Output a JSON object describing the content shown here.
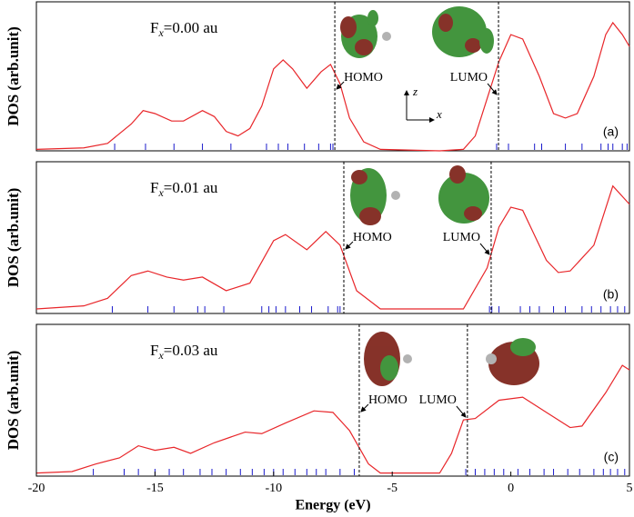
{
  "chart_data": [
    {
      "type": "line",
      "ylabel": "DOS (arb.unit)",
      "panel_label": "(a)",
      "field": {
        "symbol": "F",
        "subscript": "x",
        "text": "=0.00 au"
      },
      "axes_icon": [
        "z",
        "x"
      ],
      "xlim": [
        -20,
        5
      ],
      "ylim": [
        0,
        1
      ],
      "x": [
        -20,
        -18,
        -17,
        -16,
        -15.5,
        -15,
        -14.3,
        -13.8,
        -13,
        -12.5,
        -12,
        -11.5,
        -11,
        -10.5,
        -10,
        -9.6,
        -9.2,
        -8.6,
        -8,
        -7.6,
        -7.2,
        -6.8,
        -6.2,
        -5.5,
        -3,
        -2,
        -1.5,
        -1,
        -0.5,
        0,
        0.5,
        1.2,
        1.8,
        2.3,
        2.8,
        3.5,
        4,
        4.3,
        4.7,
        5
      ],
      "series": [
        {
          "color": "#e8262a",
          "values": [
            0.01,
            0.02,
            0.05,
            0.18,
            0.27,
            0.25,
            0.2,
            0.2,
            0.27,
            0.23,
            0.13,
            0.1,
            0.15,
            0.3,
            0.55,
            0.61,
            0.55,
            0.42,
            0.53,
            0.58,
            0.45,
            0.22,
            0.06,
            0.01,
            0.0,
            0.01,
            0.1,
            0.35,
            0.6,
            0.78,
            0.75,
            0.5,
            0.25,
            0.22,
            0.25,
            0.5,
            0.78,
            0.86,
            0.78,
            0.7
          ]
        }
      ],
      "eigenvalues": [
        -16.7,
        -15.4,
        -14.2,
        -13,
        -11.8,
        -10.3,
        -9.8,
        -9.4,
        -8.7,
        -8.1,
        -7.6,
        -7.5,
        -0.6,
        -0.1,
        1,
        1.3,
        2.3,
        3,
        3.8,
        4.1,
        4.3,
        4.7,
        4.9
      ],
      "eigen_color": "#1a1acc",
      "homo": -7.42,
      "homo_label": "HOMO",
      "lumo": -0.52,
      "lumo_label": "LUMO"
    },
    {
      "type": "line",
      "ylabel": "DOS (arb.unit)",
      "panel_label": "(b)",
      "field": {
        "symbol": "F",
        "subscript": "x",
        "text": "=0.01 au"
      },
      "xlim": [
        -20,
        5
      ],
      "ylim": [
        0,
        1
      ],
      "x": [
        -20,
        -18,
        -17,
        -16,
        -15.3,
        -14.5,
        -13.8,
        -13,
        -12,
        -11,
        -10,
        -9.5,
        -8.6,
        -7.8,
        -7.2,
        -6.5,
        -5.5,
        -2,
        -1,
        -0.5,
        0,
        0.5,
        1.5,
        2,
        2.5,
        3.5,
        4.3,
        5
      ],
      "series": [
        {
          "color": "#e8262a",
          "values": [
            0.03,
            0.05,
            0.1,
            0.25,
            0.28,
            0.24,
            0.22,
            0.24,
            0.15,
            0.2,
            0.48,
            0.52,
            0.42,
            0.54,
            0.45,
            0.15,
            0.03,
            0.03,
            0.3,
            0.57,
            0.7,
            0.68,
            0.35,
            0.27,
            0.28,
            0.45,
            0.84,
            0.72
          ]
        }
      ],
      "eigenvalues": [
        -16.8,
        -15.3,
        -14.2,
        -13.2,
        -12.9,
        -12.1,
        -10.5,
        -10.2,
        -9.9,
        -9.5,
        -8.9,
        -8.4,
        -7.7,
        -7.3,
        -7.2,
        -0.9,
        -0.8,
        -0.5,
        0.4,
        0.8,
        1.2,
        1.8,
        2.3,
        3,
        3.4,
        3.8,
        4.2,
        4.5,
        4.8
      ],
      "eigen_color": "#1a1acc",
      "homo": -7.04,
      "homo_label": "HOMO",
      "lumo": -0.83,
      "lumo_label": "LUMO"
    },
    {
      "type": "line",
      "ylabel": "DOS (arb.unit)",
      "panel_label": "(c)",
      "field": {
        "symbol": "F",
        "subscript": "x",
        "text": "=0.03 au"
      },
      "xlabel": "Energy (eV)",
      "xlim": [
        -20,
        5
      ],
      "xticks": [
        -20,
        -15,
        -10,
        -5,
        0,
        5
      ],
      "ylim": [
        0,
        1
      ],
      "x": [
        -20,
        -18.5,
        -17.5,
        -16.5,
        -15.7,
        -15,
        -14.2,
        -13.5,
        -12.5,
        -11.2,
        -10.5,
        -9.5,
        -8.3,
        -7.5,
        -6.8,
        -6,
        -5.5,
        -3,
        -2.5,
        -2,
        -1.5,
        -0.5,
        0.5,
        1.5,
        2.5,
        3,
        4,
        4.7,
        5
      ],
      "series": [
        {
          "color": "#e8262a",
          "values": [
            0.02,
            0.03,
            0.08,
            0.12,
            0.2,
            0.17,
            0.19,
            0.15,
            0.22,
            0.29,
            0.28,
            0.35,
            0.43,
            0.42,
            0.3,
            0.08,
            0.02,
            0.02,
            0.15,
            0.37,
            0.38,
            0.5,
            0.52,
            0.42,
            0.32,
            0.33,
            0.55,
            0.73,
            0.7
          ]
        }
      ],
      "eigenvalues": [
        -17.6,
        -16.3,
        -15.7,
        -15,
        -14.4,
        -13.8,
        -13.1,
        -12.6,
        -12,
        -11.4,
        -10.9,
        -10.4,
        -10,
        -9.6,
        -9.1,
        -8.6,
        -8.2,
        -7.8,
        -7.2,
        -6.6,
        -1.9,
        -1.5,
        -1.1,
        -0.7,
        -0.3,
        0.3,
        0.8,
        1.4,
        1.8,
        2.4,
        2.9,
        3.5,
        3.9,
        4.2,
        4.5,
        4.8
      ],
      "eigen_color": "#1a1acc",
      "homo": -6.39,
      "homo_label": "HOMO",
      "lumo": -1.83,
      "lumo_label": "LUMO"
    }
  ]
}
